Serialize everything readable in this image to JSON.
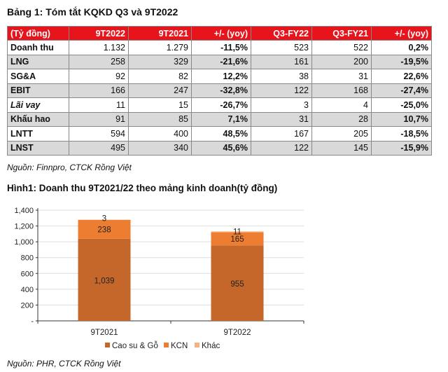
{
  "table": {
    "title": "Bảng 1: Tóm tắt KQKD Q3 và 9T2022",
    "headers": [
      "(Tỷ đồng)",
      "9T2022",
      "9T2021",
      "+/- (yoy)",
      "Q3-FY22",
      "Q3-FY21",
      "+/- (yoy)"
    ],
    "rows": [
      [
        "Doanh thu",
        "1.132",
        "1.279",
        "-11,5%",
        "523",
        "522",
        "0,2%"
      ],
      [
        "LNG",
        "258",
        "329",
        "-21,6%",
        "161",
        "200",
        "-19,5%"
      ],
      [
        "SG&A",
        "92",
        "82",
        "12,2%",
        "38",
        "31",
        "22,6%"
      ],
      [
        "EBIT",
        "166",
        "247",
        "-32,8%",
        "122",
        "168",
        "-27,4%"
      ],
      [
        "Lãi vay",
        "11",
        "15",
        "-26,7%",
        "3",
        "4",
        "-25,0%"
      ],
      [
        "Khấu hao",
        "91",
        "85",
        "7,1%",
        "31",
        "28",
        "10,7%"
      ],
      [
        "LNTT",
        "594",
        "400",
        "48,5%",
        "167",
        "205",
        "-18,5%"
      ],
      [
        "LNST",
        "495",
        "340",
        "45,6%",
        "122",
        "145",
        "-15,9%"
      ]
    ],
    "source": "Nguồn: Finnpro, CTCK Rồng Việt"
  },
  "chart_title": "Hình1:  Doanh thu 9T2021/22  theo mảng kinh doanh(tỷ đồng)",
  "chart_data": {
    "type": "bar",
    "stacked": true,
    "categories": [
      "9T2021",
      "9T2022"
    ],
    "series": [
      {
        "name": "Cao su & Gỗ",
        "values": [
          1039,
          955
        ],
        "labels": [
          "1,039",
          "955"
        ],
        "color": "#c5672a"
      },
      {
        "name": "KCN",
        "values": [
          238,
          165
        ],
        "labels": [
          "238",
          "165"
        ],
        "color": "#ed7d31"
      },
      {
        "name": "Khác",
        "values": [
          3,
          11
        ],
        "labels": [
          "3",
          "11"
        ],
        "color": "#f4b183"
      }
    ],
    "ylim": [
      0,
      1400
    ],
    "yticks": [
      0,
      200,
      400,
      600,
      800,
      1000,
      1200,
      1400
    ],
    "ytick_labels": [
      "-",
      "200",
      "400",
      "600",
      "800",
      "1,000",
      "1,200",
      "1,400"
    ],
    "legend": "bottom",
    "grid": true
  },
  "chart_source": "Nguồn: PHR, CTCK Rồng Việt"
}
